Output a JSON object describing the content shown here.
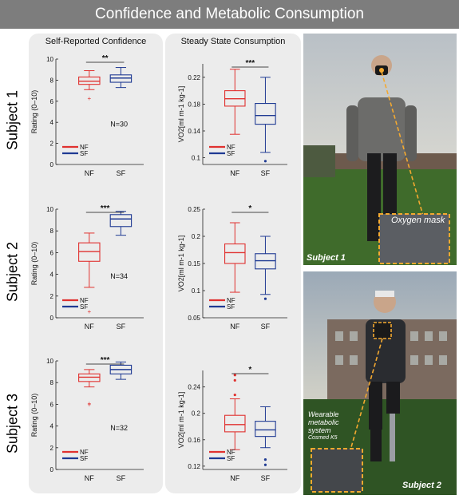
{
  "title": "Confidence and Metabolic Consumption",
  "panels": {
    "left_header": "Self-Reported Confidence",
    "middle_header": "Steady State Consumption"
  },
  "subjects": [
    "Subject 1",
    "Subject 2",
    "Subject 3"
  ],
  "photos": {
    "photo1_caption": "Subject 1",
    "photo1_callout": "Oxygen mask",
    "photo2_caption": "Subject 2",
    "photo2_callout_line1": "Wearable",
    "photo2_callout_line2": "metabolic",
    "photo2_callout_line3": "system",
    "photo2_callout_line4": "Cosmed K5"
  },
  "colors": {
    "NF": "#e0312f",
    "SF": "#1f3a93",
    "panel": "#ececec",
    "title_bar": "#7d7d7d",
    "callout": "#f4a930"
  },
  "chart_data": [
    {
      "type": "box",
      "title": "",
      "xlabel": "",
      "ylabel": "Rating (0–10)",
      "categories": [
        "NF",
        "SF"
      ],
      "ylim": [
        0,
        10
      ],
      "yticks": [
        0,
        2,
        4,
        6,
        8,
        10
      ],
      "n_label": "N=30",
      "significance": "**",
      "legend": [
        "NF",
        "SF"
      ],
      "legend_position": "lower-left",
      "boxes": [
        {
          "name": "NF",
          "whisker_low": 7.1,
          "q1": 7.6,
          "median": 7.9,
          "q3": 8.3,
          "whisker_high": 8.9,
          "outliers": [
            6.3
          ]
        },
        {
          "name": "SF",
          "whisker_low": 7.3,
          "q1": 7.8,
          "median": 8.2,
          "q3": 8.5,
          "whisker_high": 9.2,
          "outliers": []
        }
      ]
    },
    {
      "type": "box",
      "title": "",
      "xlabel": "",
      "ylabel": "VO2[ml m-1 kg-1]",
      "categories": [
        "NF",
        "SF"
      ],
      "ylim": [
        0.09,
        0.24
      ],
      "yticks": [
        0.1,
        0.14,
        0.18,
        0.22
      ],
      "significance": "***",
      "legend": [
        "NF",
        "SF"
      ],
      "legend_position": "lower-left",
      "boxes": [
        {
          "name": "NF",
          "whisker_low": 0.135,
          "q1": 0.177,
          "median": 0.188,
          "q3": 0.2,
          "whisker_high": 0.232,
          "outliers": []
        },
        {
          "name": "SF",
          "whisker_low": 0.108,
          "q1": 0.15,
          "median": 0.163,
          "q3": 0.181,
          "whisker_high": 0.22,
          "outliers": [
            0.095
          ]
        }
      ]
    },
    {
      "type": "box",
      "title": "",
      "xlabel": "",
      "ylabel": "Rating (0–10)",
      "categories": [
        "NF",
        "SF"
      ],
      "ylim": [
        0,
        10
      ],
      "yticks": [
        0,
        2,
        4,
        6,
        8,
        10
      ],
      "n_label": "N=34",
      "significance": "***",
      "legend": [
        "NF",
        "SF"
      ],
      "legend_position": "lower-left",
      "boxes": [
        {
          "name": "NF",
          "whisker_low": 2.8,
          "q1": 5.2,
          "median": 6.1,
          "q3": 6.9,
          "whisker_high": 7.8,
          "outliers": [
            0.6
          ]
        },
        {
          "name": "SF",
          "whisker_low": 7.6,
          "q1": 8.4,
          "median": 9.1,
          "q3": 9.5,
          "whisker_high": 9.8,
          "outliers": []
        }
      ]
    },
    {
      "type": "box",
      "title": "",
      "xlabel": "",
      "ylabel": "VO2[ml m-1 kg-1]",
      "categories": [
        "NF",
        "SF"
      ],
      "ylim": [
        0.05,
        0.25
      ],
      "yticks": [
        0.05,
        0.1,
        0.15,
        0.2,
        0.25
      ],
      "significance": "*",
      "legend": [
        "NF",
        "SF"
      ],
      "legend_position": "lower-left",
      "boxes": [
        {
          "name": "NF",
          "whisker_low": 0.097,
          "q1": 0.15,
          "median": 0.17,
          "q3": 0.186,
          "whisker_high": 0.225,
          "outliers": []
        },
        {
          "name": "SF",
          "whisker_low": 0.093,
          "q1": 0.14,
          "median": 0.155,
          "q3": 0.168,
          "whisker_high": 0.2,
          "outliers": [
            0.085
          ]
        }
      ]
    },
    {
      "type": "box",
      "title": "",
      "xlabel": "",
      "ylabel": "Rating (0–10)",
      "categories": [
        "NF",
        "SF"
      ],
      "ylim": [
        0,
        10
      ],
      "yticks": [
        0,
        2,
        4,
        6,
        8,
        10
      ],
      "n_label": "N=32",
      "significance": "***",
      "legend": [
        "NF",
        "SF"
      ],
      "legend_position": "lower-left",
      "boxes": [
        {
          "name": "NF",
          "whisker_low": 7.6,
          "q1": 8.1,
          "median": 8.5,
          "q3": 8.8,
          "whisker_high": 9.2,
          "outliers": [
            6.0,
            6.1
          ]
        },
        {
          "name": "SF",
          "whisker_low": 8.3,
          "q1": 8.8,
          "median": 9.2,
          "q3": 9.6,
          "whisker_high": 9.9,
          "outliers": []
        }
      ]
    },
    {
      "type": "box",
      "title": "",
      "xlabel": "",
      "ylabel": "VO2[ml m-1 kg-1]",
      "categories": [
        "NF",
        "SF"
      ],
      "ylim": [
        0.115,
        0.265
      ],
      "yticks": [
        0.12,
        0.16,
        0.2,
        0.24
      ],
      "significance": "*",
      "legend": [
        "NF",
        "SF"
      ],
      "legend_position": "lower-left",
      "boxes": [
        {
          "name": "NF",
          "whisker_low": 0.145,
          "q1": 0.172,
          "median": 0.183,
          "q3": 0.197,
          "whisker_high": 0.222,
          "outliers": [
            0.228,
            0.25,
            0.258
          ]
        },
        {
          "name": "SF",
          "whisker_low": 0.148,
          "q1": 0.165,
          "median": 0.175,
          "q3": 0.188,
          "whisker_high": 0.21,
          "outliers": [
            0.13,
            0.122
          ]
        }
      ]
    }
  ]
}
